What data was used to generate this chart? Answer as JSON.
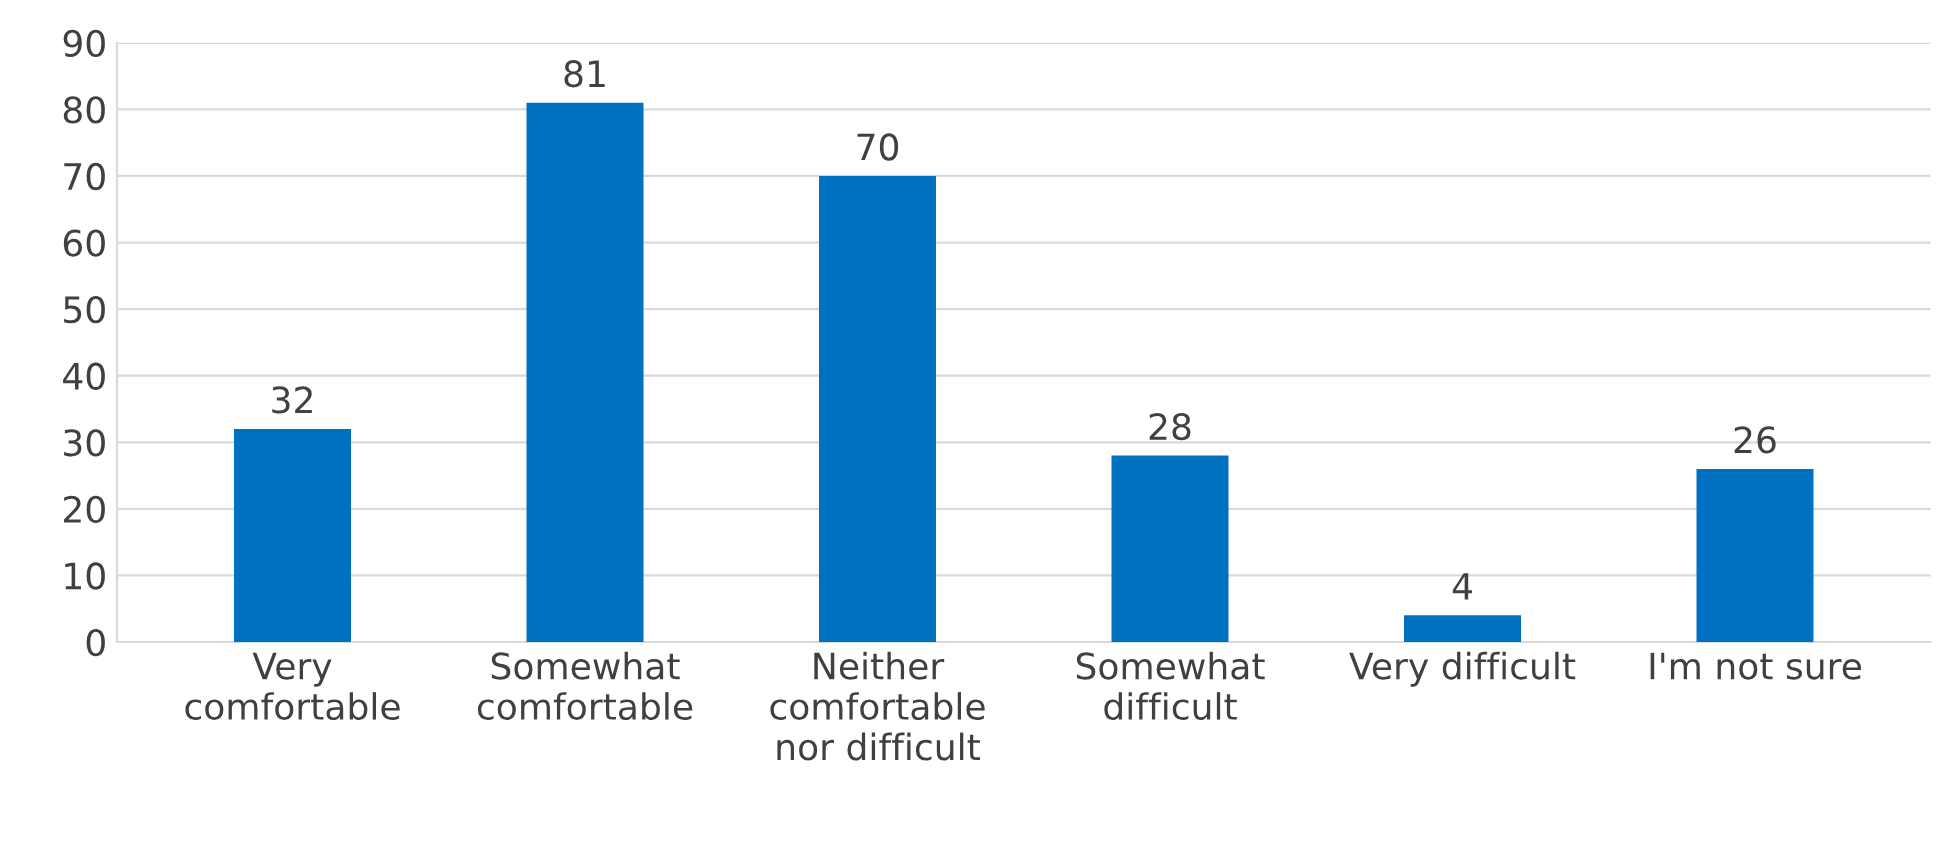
{
  "chart_data": {
    "type": "bar",
    "categories": [
      "Very\ncomfortable",
      "Somewhat\ncomfortable",
      "Neither\ncomfortable\nnor difficult",
      "Somewhat\ndifficult",
      "Very difficult",
      "I'm not sure"
    ],
    "values": [
      32,
      81,
      70,
      28,
      4,
      26
    ],
    "color": "#0070c0",
    "ylim": [
      0,
      90
    ],
    "yticks": [
      0,
      10,
      20,
      30,
      40,
      50,
      60,
      70,
      80,
      90
    ],
    "grid": "y",
    "data_labels": true
  }
}
